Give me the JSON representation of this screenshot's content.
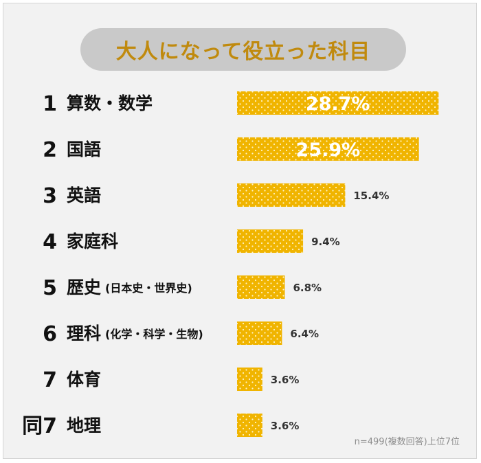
{
  "title": "大人になって役立った科目",
  "footnote": "n=499(複数回答)上位7位",
  "colors": {
    "bar": "#f0b400",
    "dot": "#fff3c4",
    "title_text": "#c08a0e",
    "pill": "#c9c9c9"
  },
  "chart_data": {
    "type": "bar",
    "orientation": "horizontal",
    "title": "大人になって役立った科目",
    "ranks": [
      "1",
      "2",
      "3",
      "4",
      "5",
      "6",
      "7",
      "同7"
    ],
    "categories": [
      "算数・数学",
      "国語",
      "英語",
      "家庭科",
      "歴史",
      "理科",
      "体育",
      "地理"
    ],
    "sublabels": [
      "",
      "",
      "",
      "",
      "(日本史・世界史)",
      "(化学・科学・生物)",
      "",
      ""
    ],
    "values": [
      28.7,
      25.9,
      15.4,
      9.4,
      6.8,
      6.4,
      3.6,
      3.6
    ],
    "value_labels": [
      "28.7%",
      "25.9%",
      "15.4%",
      "9.4%",
      "6.8%",
      "6.4%",
      "3.6%",
      "3.6%"
    ],
    "unit": "%",
    "grid": false,
    "legend": "none"
  }
}
